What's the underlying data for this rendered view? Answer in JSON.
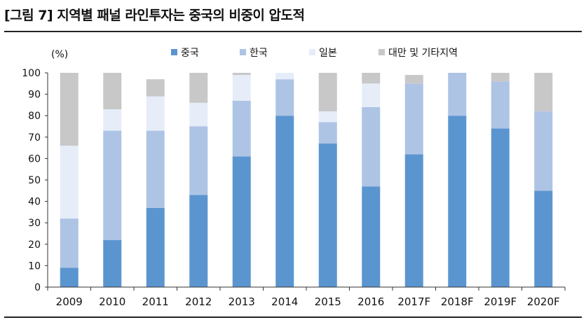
{
  "figure": {
    "title": "[그림 7] 지역별 패널 라인투자는 중국의 비중이 압도적"
  },
  "chart_data": {
    "type": "bar",
    "stacked": true,
    "categories": [
      "2009",
      "2010",
      "2011",
      "2012",
      "2013",
      "2014",
      "2015",
      "2016",
      "2017F",
      "2018F",
      "2019F",
      "2020F"
    ],
    "series": [
      {
        "name": "중국",
        "color": "#5b95d0",
        "values": [
          9,
          22,
          37,
          43,
          61,
          80,
          67,
          47,
          62,
          80,
          74,
          45
        ]
      },
      {
        "name": "한국",
        "color": "#aec4e5",
        "values": [
          23,
          51,
          36,
          32,
          26,
          17,
          10,
          37,
          33,
          20,
          22,
          37
        ]
      },
      {
        "name": "일본",
        "color": "#e6edf8",
        "values": [
          34,
          10,
          16,
          11,
          12,
          3,
          5,
          11,
          0,
          0,
          0,
          0
        ]
      },
      {
        "name": "대만 및 기타지역",
        "color": "#c8c8c8",
        "values": [
          34,
          17,
          8,
          14,
          1,
          0,
          18,
          5,
          4,
          0,
          4,
          18
        ]
      }
    ],
    "unit_label": "(%)",
    "ylim": [
      0,
      100
    ],
    "yticks": [
      0,
      10,
      20,
      30,
      40,
      50,
      60,
      70,
      80,
      90,
      100
    ],
    "grid": false,
    "legend": "top"
  }
}
